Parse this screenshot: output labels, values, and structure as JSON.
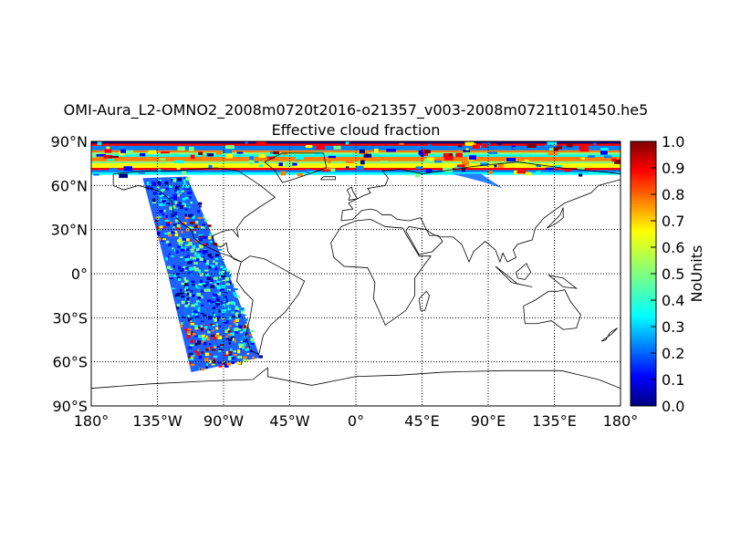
{
  "figure": {
    "title": "OMI-Aura_L2-OMNO2_2008m0720t2016-o21357_v003-2008m0721t101450.he5",
    "subtitle": "Effective cloud fraction"
  },
  "colors": {
    "coastline": "#000000",
    "grid": "#000000",
    "frame": "#000000",
    "colormap": [
      "#00007f",
      "#0000ff",
      "#007fff",
      "#00ffff",
      "#7fff7f",
      "#ffff00",
      "#ff7f00",
      "#ff0000",
      "#7f0000"
    ]
  },
  "chart_data": {
    "type": "heatmap",
    "projection": "cylindrical",
    "colormap": "jet",
    "xlim": [
      -180,
      180
    ],
    "ylim": [
      -90,
      90
    ],
    "grid": true,
    "x_ticks": [
      {
        "value": -180,
        "label": "180°"
      },
      {
        "value": -135,
        "label": "135°W"
      },
      {
        "value": -90,
        "label": "90°W"
      },
      {
        "value": -45,
        "label": "45°W"
      },
      {
        "value": 0,
        "label": "0°"
      },
      {
        "value": 45,
        "label": "45°E"
      },
      {
        "value": 90,
        "label": "90°E"
      },
      {
        "value": 135,
        "label": "135°E"
      },
      {
        "value": 180,
        "label": "180°"
      }
    ],
    "y_ticks": [
      {
        "value": 90,
        "label": "90°N"
      },
      {
        "value": 60,
        "label": "60°N"
      },
      {
        "value": 30,
        "label": "30°N"
      },
      {
        "value": 0,
        "label": "0°"
      },
      {
        "value": -30,
        "label": "30°S"
      },
      {
        "value": -60,
        "label": "60°S"
      },
      {
        "value": -90,
        "label": "90°S"
      }
    ],
    "colorbar": {
      "label": "NoUnits",
      "range": [
        0.0,
        1.0
      ],
      "ticks": [
        "0.0",
        "0.1",
        "0.2",
        "0.3",
        "0.4",
        "0.5",
        "0.6",
        "0.7",
        "0.8",
        "0.9",
        "1.0"
      ]
    },
    "swath_outline": [
      [
        -155,
        68
      ],
      [
        -180,
        68
      ],
      [
        -180,
        90
      ],
      [
        180,
        90
      ],
      [
        180,
        68
      ],
      [
        85,
        68
      ],
      [
        100,
        57
      ],
      [
        85,
        62
      ],
      [
        65,
        68
      ],
      [
        -110,
        68
      ],
      [
        -120,
        66
      ],
      [
        -88,
        4
      ],
      [
        -63,
        -58
      ],
      [
        -113,
        -67
      ],
      [
        -128,
        0
      ]
    ],
    "swath_lon_lat": [
      [
        -145,
        65
      ],
      [
        -115,
        66
      ],
      [
        -88,
        4
      ],
      [
        -65,
        -57
      ],
      [
        -112,
        -67
      ],
      [
        -128,
        0
      ]
    ],
    "polar_band": {
      "lat_min": 68,
      "lat_max": 90
    }
  }
}
